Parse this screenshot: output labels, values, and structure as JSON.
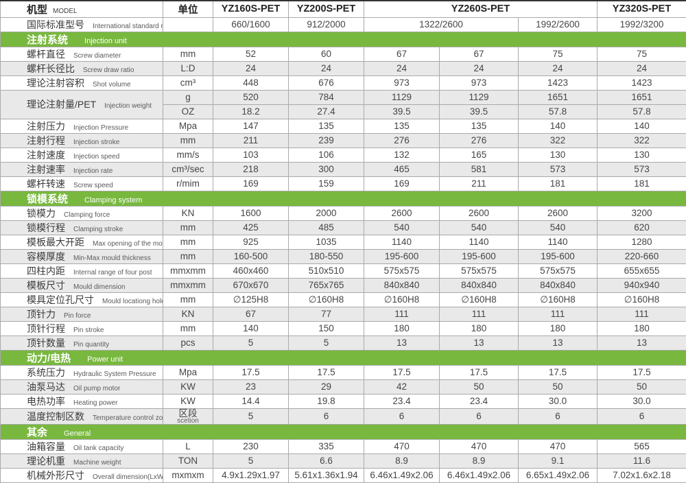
{
  "palette": {
    "green": "#78b83e",
    "stripe": "#e9e9e9",
    "border": "#a9a9a9",
    "text_dark": "#3a3a3a"
  },
  "header": {
    "model_cn": "机型",
    "model_en": "MODEL",
    "unit": "单位",
    "columns": [
      {
        "label": "YZ160S-PET",
        "span": 1
      },
      {
        "label": "YZ200S-PET",
        "span": 1
      },
      {
        "label": "YZ260S-PET",
        "span": 3
      },
      {
        "label": "YZ320S-PET",
        "span": 1
      }
    ]
  },
  "standard_row": {
    "label_cn": "国际标准型号",
    "label_en": "International standard model",
    "unit": "",
    "cells": [
      {
        "value": "660/1600",
        "span": 1
      },
      {
        "value": "912/2000",
        "span": 1
      },
      {
        "value": "1322/2600",
        "span": 2
      },
      {
        "value": "1992/2600",
        "span": 1
      },
      {
        "value": "1992/3200",
        "span": 1
      }
    ]
  },
  "sections": [
    {
      "title_cn": "注射系统",
      "title_en": "Injection unit",
      "rows": [
        {
          "label_cn": "螺杆直径",
          "label_en": "Screw diameter",
          "unit": "mm",
          "values": [
            "52",
            "60",
            "67",
            "67",
            "75",
            "75"
          ]
        },
        {
          "label_cn": "螺杆长径比",
          "label_en": "Screw draw ratio",
          "unit": "L:D",
          "values": [
            "24",
            "24",
            "24",
            "24",
            "24",
            "24"
          ]
        },
        {
          "label_cn": "理论注射容积",
          "label_en": "Shot volume",
          "unit": "cm³",
          "values": [
            "448",
            "676",
            "973",
            "973",
            "1423",
            "1423"
          ]
        },
        {
          "label_cn": "理论注射量/PET",
          "label_en": "Injection weight",
          "subrows": [
            {
              "unit": "g",
              "values": [
                "520",
                "784",
                "1129",
                "1129",
                "1651",
                "1651"
              ]
            },
            {
              "unit": "OZ",
              "values": [
                "18.2",
                "27.4",
                "39.5",
                "39.5",
                "57.8",
                "57.8"
              ]
            }
          ]
        },
        {
          "label_cn": "注射压力",
          "label_en": "Injection Pressure",
          "unit": "Mpa",
          "values": [
            "147",
            "135",
            "135",
            "135",
            "140",
            "140"
          ]
        },
        {
          "label_cn": "注射行程",
          "label_en": "Injection stroke",
          "unit": "mm",
          "values": [
            "211",
            "239",
            "276",
            "276",
            "322",
            "322"
          ]
        },
        {
          "label_cn": "注射速度",
          "label_en": "Injection speed",
          "unit": "mm/s",
          "values": [
            "103",
            "106",
            "132",
            "165",
            "130",
            "130"
          ]
        },
        {
          "label_cn": "注射速率",
          "label_en": "Injection rate",
          "unit": "cm³/sec",
          "values": [
            "218",
            "300",
            "465",
            "581",
            "573",
            "573"
          ]
        },
        {
          "label_cn": "螺杆转速",
          "label_en": "Screw speed",
          "unit": "r/mim",
          "values": [
            "169",
            "159",
            "169",
            "211",
            "181",
            "181"
          ]
        }
      ]
    },
    {
      "title_cn": "锁模系统",
      "title_en": "Clamping system",
      "rows": [
        {
          "label_cn": "锁模力",
          "label_en": "Clamping force",
          "unit": "KN",
          "values": [
            "1600",
            "2000",
            "2600",
            "2600",
            "2600",
            "3200"
          ]
        },
        {
          "label_cn": "锁模行程",
          "label_en": "Clamping stroke",
          "unit": "mm",
          "values": [
            "425",
            "485",
            "540",
            "540",
            "540",
            "620"
          ]
        },
        {
          "label_cn": "模板最大开距",
          "label_en": "Max opening of the mould",
          "unit": "mm",
          "values": [
            "925",
            "1035",
            "1140",
            "1140",
            "1140",
            "1280"
          ]
        },
        {
          "label_cn": "容模厚度",
          "label_en": "Min-Max mould thickness",
          "unit": "mm",
          "values": [
            "160-500",
            "180-550",
            "195-600",
            "195-600",
            "195-600",
            "220-660"
          ]
        },
        {
          "label_cn": "四柱内距",
          "label_en": "Internal range of four post",
          "unit": "mmxmm",
          "values": [
            "460x460",
            "510x510",
            "575x575",
            "575x575",
            "575x575",
            "655x655"
          ]
        },
        {
          "label_cn": "模板尺寸",
          "label_en": "Mould dimension",
          "unit": "mmxmm",
          "values": [
            "670x670",
            "765x765",
            "840x840",
            "840x840",
            "840x840",
            "940x940"
          ]
        },
        {
          "label_cn": "模具定位孔尺寸",
          "label_en": "Mould locationg hole diameter",
          "unit": "mm",
          "values": [
            "∅125H8",
            "∅160H8",
            "∅160H8",
            "∅160H8",
            "∅160H8",
            "∅160H8"
          ]
        },
        {
          "label_cn": "顶针力",
          "label_en": "Pin force",
          "unit": "KN",
          "values": [
            "67",
            "77",
            "111",
            "111",
            "111",
            "111"
          ]
        },
        {
          "label_cn": "顶针行程",
          "label_en": "Pin stroke",
          "unit": "mm",
          "values": [
            "140",
            "150",
            "180",
            "180",
            "180",
            "180"
          ]
        },
        {
          "label_cn": "顶针数量",
          "label_en": "Pin quantity",
          "unit": "pcs",
          "values": [
            "5",
            "5",
            "13",
            "13",
            "13",
            "13"
          ]
        }
      ]
    },
    {
      "title_cn": "动力/电热",
      "title_en": "Power unit",
      "rows": [
        {
          "label_cn": "系统压力",
          "label_en": "Hydraulic System Pressure",
          "unit": "Mpa",
          "values": [
            "17.5",
            "17.5",
            "17.5",
            "17.5",
            "17.5",
            "17.5"
          ]
        },
        {
          "label_cn": "油泵马达",
          "label_en": "Oil pump motor",
          "unit": "KW",
          "values": [
            "23",
            "29",
            "42",
            "50",
            "50",
            "50"
          ]
        },
        {
          "label_cn": "电热功率",
          "label_en": "Heating power",
          "unit": "KW",
          "values": [
            "14.4",
            "19.8",
            "23.4",
            "23.4",
            "30.0",
            "30.0"
          ]
        },
        {
          "label_cn": "温度控制区数",
          "label_en": "Temperature control zone",
          "unit": "区段",
          "unit2": "scetion",
          "values": [
            "5",
            "6",
            "6",
            "6",
            "6",
            "6"
          ]
        }
      ]
    },
    {
      "title_cn": "其余",
      "title_en": "General",
      "rows": [
        {
          "label_cn": "油箱容量",
          "label_en": "Oil tank capacity",
          "unit": "L",
          "values": [
            "230",
            "335",
            "470",
            "470",
            "470",
            "565"
          ]
        },
        {
          "label_cn": "理论机重",
          "label_en": "Machine weight",
          "unit": "TON",
          "values": [
            "5",
            "6.6",
            "8.9",
            "8.9",
            "9.1",
            "11.6"
          ]
        },
        {
          "label_cn": "机械外形尺寸",
          "label_en": "Overall dimension(LxWxH)",
          "unit": "mxmxm",
          "values": [
            "4.9x1.29x1.97",
            "5.61x1.36x1.94",
            "6.46x1.49x2.06",
            "6.46x1.49x2.06",
            "6.65x1.49x2.06",
            "7.02x1.6x2.18"
          ]
        }
      ]
    }
  ]
}
